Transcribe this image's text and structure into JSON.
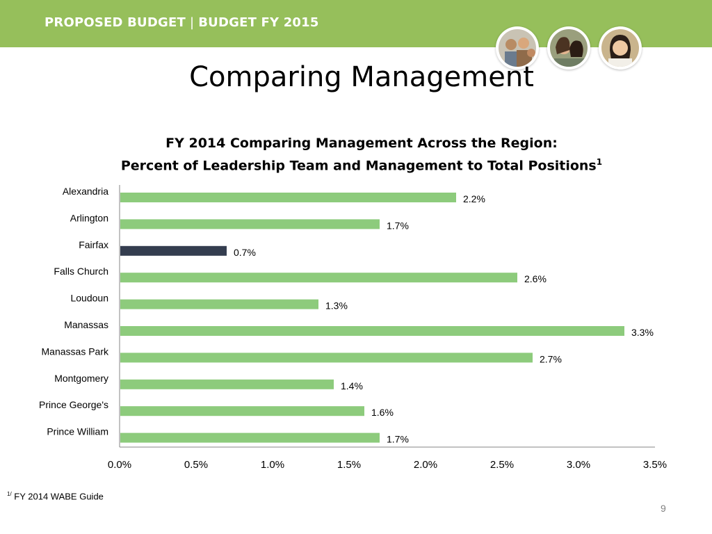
{
  "header": {
    "left": "PROPOSED BUDGET",
    "separator": "|",
    "right": "BUDGET FY 2015",
    "band_color": "#96bf5b",
    "photos": [
      "students-group-photo",
      "students-laughing-photo",
      "student-smiling-photo"
    ]
  },
  "slide_title": "Comparing Management",
  "chart_data": {
    "type": "bar",
    "orientation": "horizontal",
    "title_line1": "FY 2014 Comparing Management Across the Region:",
    "title_line2": "Percent of Leadership Team and Management to Total Positions",
    "title_footnote_mark": "1",
    "categories": [
      "Alexandria",
      "Arlington",
      "Fairfax",
      "Falls Church",
      "Loudoun",
      "Manassas",
      "Manassas Park",
      "Montgomery",
      "Prince George's",
      "Prince William"
    ],
    "values": [
      2.2,
      1.7,
      0.7,
      2.6,
      1.3,
      3.3,
      2.7,
      1.4,
      1.6,
      1.7
    ],
    "value_labels": [
      "2.2%",
      "1.7%",
      "0.7%",
      "2.6%",
      "1.3%",
      "3.3%",
      "2.7%",
      "1.4%",
      "1.6%",
      "1.7%"
    ],
    "highlight_category": "Fairfax",
    "bar_color": "#8dcb7c",
    "highlight_color": "#343d4f",
    "xlim": [
      0,
      3.5
    ],
    "xticks": [
      0,
      0.5,
      1.0,
      1.5,
      2.0,
      2.5,
      3.0,
      3.5
    ],
    "xtick_labels": [
      "0.0%",
      "0.5%",
      "1.0%",
      "1.5%",
      "2.0%",
      "2.5%",
      "3.0%",
      "3.5%"
    ],
    "grid": false,
    "legend": "none"
  },
  "footnote": {
    "mark": "1/",
    "text": " FY 2014 WABE Guide"
  },
  "page_number": "9"
}
